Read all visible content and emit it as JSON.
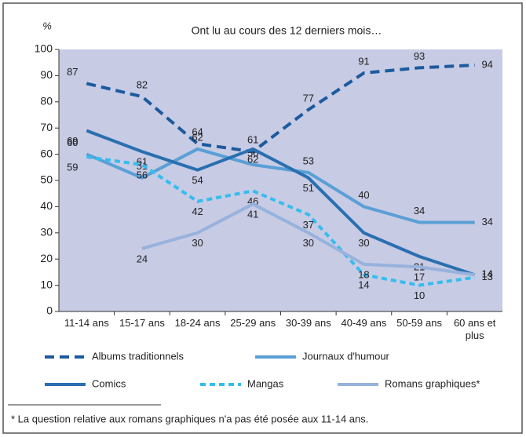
{
  "chart_data": {
    "type": "line",
    "title": "Ont lu au cours des 12 derniers mois…",
    "y_label": "%",
    "categories": [
      "11-14 ans",
      "15-17 ans",
      "18-24 ans",
      "25-29 ans",
      "30-39 ans",
      "40-49 ans",
      "50-59 ans",
      "60 ans et plus"
    ],
    "series": [
      {
        "name": "Albums traditionnels",
        "color": "#1c5a9e",
        "dashed": true,
        "values": [
          87,
          82,
          64,
          61,
          77,
          91,
          93,
          94
        ]
      },
      {
        "name": "Journaux d'humour",
        "color": "#5a9fd6",
        "dashed": false,
        "values": [
          60,
          51,
          62,
          56,
          53,
          40,
          34,
          34
        ]
      },
      {
        "name": "Comics",
        "color": "#2a6fb0",
        "dashed": false,
        "values": [
          69,
          61,
          54,
          62,
          51,
          30,
          21,
          14
        ]
      },
      {
        "name": "Mangas",
        "color": "#35bdee",
        "dashed": true,
        "values": [
          59,
          56,
          42,
          46,
          37,
          14,
          10,
          13
        ]
      },
      {
        "name": "Romans graphiques*",
        "color": "#97b2dc",
        "dashed": false,
        "values": [
          null,
          24,
          30,
          41,
          30,
          18,
          17,
          14
        ]
      }
    ],
    "ylim": [
      0,
      100
    ],
    "yticks": [
      0,
      10,
      20,
      30,
      40,
      50,
      60,
      70,
      80,
      90,
      100
    ],
    "footnote": "* La question relative aux romans graphiques n'a pas été posée aux 11-14 ans."
  }
}
